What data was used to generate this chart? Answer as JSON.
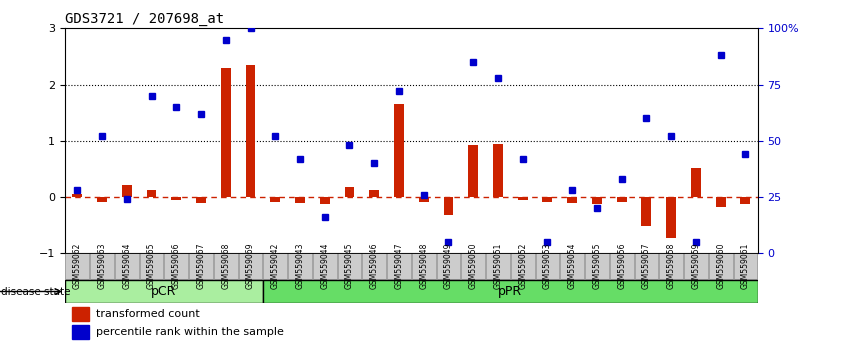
{
  "title": "GDS3721 / 207698_at",
  "samples": [
    "GSM559062",
    "GSM559063",
    "GSM559064",
    "GSM559065",
    "GSM559066",
    "GSM559067",
    "GSM559068",
    "GSM559069",
    "GSM559042",
    "GSM559043",
    "GSM559044",
    "GSM559045",
    "GSM559046",
    "GSM559047",
    "GSM559048",
    "GSM559049",
    "GSM559050",
    "GSM559051",
    "GSM559052",
    "GSM559053",
    "GSM559054",
    "GSM559055",
    "GSM559056",
    "GSM559057",
    "GSM559058",
    "GSM559059",
    "GSM559060",
    "GSM559061"
  ],
  "transformed_count": [
    0.05,
    -0.08,
    0.22,
    0.12,
    -0.05,
    -0.1,
    2.3,
    2.35,
    -0.08,
    -0.1,
    -0.12,
    0.18,
    0.12,
    1.65,
    -0.08,
    -0.32,
    0.92,
    0.95,
    -0.05,
    -0.08,
    -0.1,
    -0.12,
    -0.08,
    -0.52,
    -0.72,
    0.52,
    -0.18,
    -0.12
  ],
  "percentile_rank": [
    28,
    52,
    24,
    70,
    65,
    62,
    95,
    100,
    52,
    42,
    16,
    48,
    40,
    72,
    26,
    5,
    85,
    78,
    42,
    5,
    28,
    20,
    33,
    60,
    52,
    5,
    88,
    44
  ],
  "pcr_count": 8,
  "ppr_count": 20,
  "ylim": [
    -1,
    3
  ],
  "yticks_left": [
    -1,
    0,
    1,
    2,
    3
  ],
  "hlines_dotted": [
    1,
    2
  ],
  "bar_color": "#cc2200",
  "dot_color": "#0000cc",
  "pcr_color": "#aaeea0",
  "ppr_color": "#66dd66",
  "zero_line_color": "#cc2200",
  "dotted_line_color": "#000000",
  "bg_color": "#ffffff",
  "legend_transformed": "transformed count",
  "legend_percentile": "percentile rank within the sample",
  "disease_state_label": "disease state",
  "pcr_label": "pCR",
  "ppr_label": "pPR",
  "tick_bg_color": "#cccccc",
  "tick_border_color": "#888888"
}
